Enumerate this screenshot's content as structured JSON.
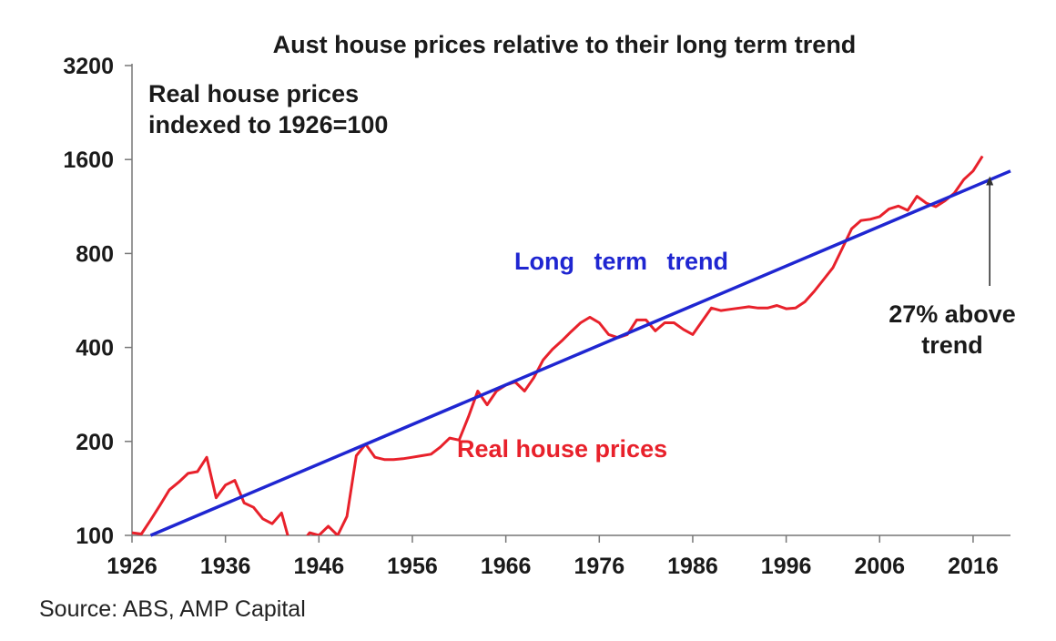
{
  "chart_data": {
    "type": "line",
    "title": "Aust house prices relative to their long term trend",
    "index_note": [
      "Real house prices",
      "indexed to 1926=100"
    ],
    "y_scale": "log2",
    "ylim": [
      100,
      3200
    ],
    "y_ticks": [
      "3200",
      "1600",
      "800",
      "400",
      "200",
      "100"
    ],
    "y_tick_values": [
      3200,
      1600,
      800,
      400,
      200,
      100
    ],
    "xlim": [
      1926,
      2020
    ],
    "x_ticks": [
      "1926",
      "1936",
      "1946",
      "1956",
      "1966",
      "1976",
      "1986",
      "1996",
      "2006",
      "2016"
    ],
    "x_tick_values": [
      1926,
      1936,
      1946,
      1956,
      1966,
      1976,
      1986,
      1996,
      2006,
      2016
    ],
    "grid": false,
    "legend": "none",
    "series": [
      {
        "name": "Real house prices",
        "color": "#e8212b",
        "x": [
          1926,
          1927,
          1928,
          1929,
          1930,
          1931,
          1932,
          1933,
          1934,
          1935,
          1936,
          1937,
          1938,
          1939,
          1940,
          1941,
          1942,
          1943,
          1944,
          1945,
          1946,
          1947,
          1948,
          1949,
          1950,
          1951,
          1952,
          1953,
          1954,
          1955,
          1956,
          1957,
          1958,
          1959,
          1960,
          1961,
          1962,
          1963,
          1964,
          1965,
          1966,
          1967,
          1968,
          1969,
          1970,
          1971,
          1972,
          1973,
          1974,
          1975,
          1976,
          1977,
          1978,
          1979,
          1980,
          1981,
          1982,
          1983,
          1984,
          1985,
          1986,
          1987,
          1988,
          1989,
          1990,
          1991,
          1992,
          1993,
          1994,
          1995,
          1996,
          1997,
          1998,
          1999,
          2000,
          2001,
          2002,
          2003,
          2004,
          2005,
          2006,
          2007,
          2008,
          2009,
          2010,
          2011,
          2012,
          2013,
          2014,
          2015,
          2016,
          2017
        ],
        "values": [
          102,
          101,
          112,
          125,
          140,
          148,
          158,
          160,
          178,
          132,
          145,
          150,
          127,
          123,
          113,
          109,
          118,
          92,
          93,
          102,
          100,
          107,
          100,
          115,
          180,
          196,
          178,
          175,
          175,
          176,
          178,
          180,
          182,
          192,
          205,
          202,
          240,
          290,
          262,
          290,
          303,
          310,
          290,
          320,
          365,
          395,
          420,
          450,
          480,
          500,
          480,
          440,
          430,
          440,
          490,
          490,
          452,
          480,
          480,
          457,
          440,
          485,
          535,
          525,
          530,
          535,
          540,
          535,
          535,
          545,
          532,
          535,
          560,
          605,
          660,
          720,
          830,
          960,
          1020,
          1030,
          1050,
          1110,
          1135,
          1100,
          1220,
          1160,
          1130,
          1180,
          1250,
          1380,
          1470,
          1640
        ]
      },
      {
        "name": "Long term trend",
        "color": "#1f26d1",
        "x": [
          1928,
          2020
        ],
        "values": [
          100,
          1470
        ]
      }
    ],
    "annotations": [
      {
        "text": [
          "27% above",
          "trend"
        ],
        "arrow_year": 2017
      }
    ]
  },
  "source": "Source: ABS, AMP Capital"
}
